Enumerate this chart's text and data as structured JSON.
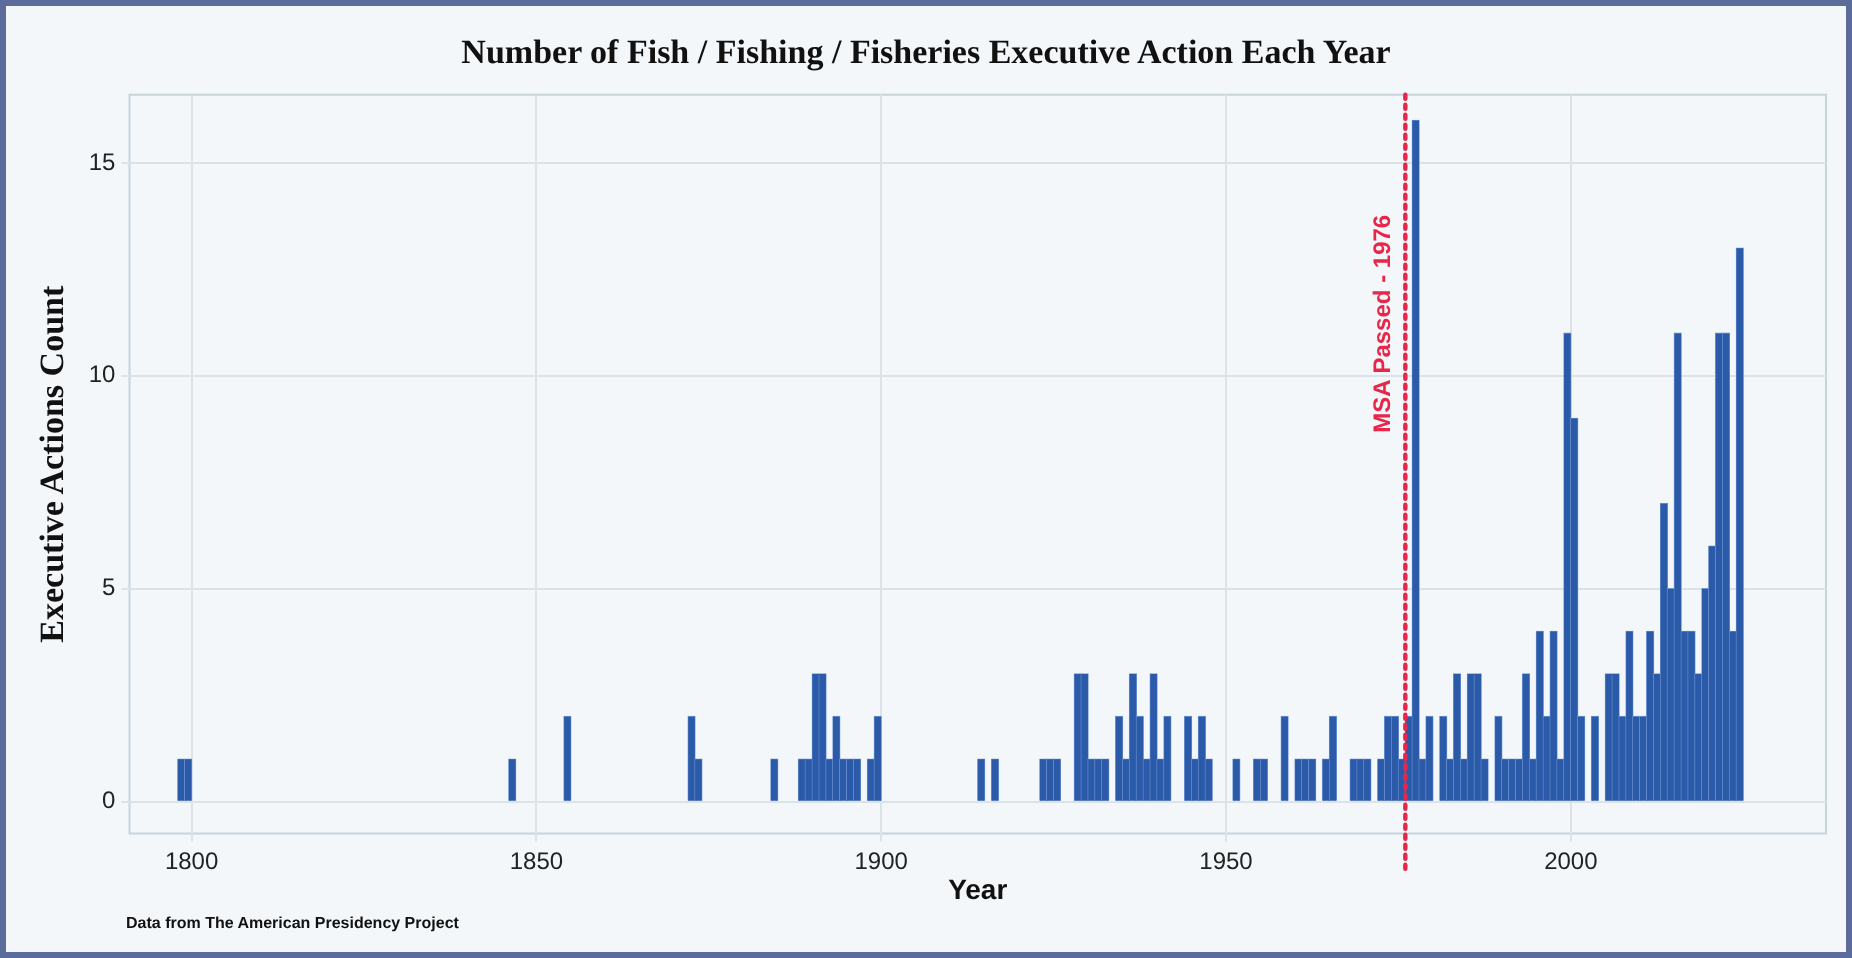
{
  "chart_data": {
    "type": "histogram",
    "title": "Number of Fish / Fishing / Fisheries Executive Action Each Year",
    "xlabel": "Year",
    "ylabel": "Executive Actions Count",
    "color": "#2b5aa8",
    "bins": [
      1798,
      1799,
      1800,
      1801,
      1802,
      1803,
      1804,
      1805,
      1806,
      1807,
      1808,
      1809,
      1810,
      1811,
      1812,
      1813,
      1814,
      1815,
      1816,
      1817,
      1818,
      1819,
      1820,
      1821,
      1822,
      1823,
      1824,
      1825,
      1826,
      1827,
      1828,
      1829,
      1830,
      1831,
      1832,
      1833,
      1834,
      1835,
      1836,
      1837,
      1838,
      1839,
      1840,
      1841,
      1842,
      1843,
      1844,
      1845,
      1846,
      1847,
      1848,
      1849,
      1850,
      1851,
      1852,
      1853,
      1854,
      1855,
      1856,
      1857,
      1858,
      1859,
      1860,
      1861,
      1862,
      1863,
      1864,
      1865,
      1866,
      1867,
      1868,
      1869,
      1870,
      1871,
      1872,
      1873,
      1874,
      1875,
      1876,
      1877,
      1878,
      1879,
      1880,
      1881,
      1882,
      1883,
      1884,
      1885,
      1886,
      1887,
      1888,
      1889,
      1890,
      1891,
      1892,
      1893,
      1894,
      1895,
      1896,
      1897,
      1898,
      1899,
      1900,
      1901,
      1902,
      1903,
      1904,
      1905,
      1906,
      1907,
      1908,
      1909,
      1910,
      1911,
      1912,
      1913,
      1914,
      1915,
      1916,
      1917,
      1918,
      1919,
      1920,
      1921,
      1922,
      1923,
      1924,
      1925,
      1926,
      1927,
      1928,
      1929,
      1930,
      1931,
      1932,
      1933,
      1934,
      1935,
      1936,
      1937,
      1938,
      1939,
      1940,
      1941,
      1942,
      1943,
      1944,
      1945,
      1946,
      1947,
      1948,
      1949,
      1950,
      1951,
      1952,
      1953,
      1954,
      1955,
      1956,
      1957,
      1958,
      1959,
      1960,
      1961,
      1962,
      1963,
      1964,
      1965,
      1966,
      1967,
      1968,
      1969,
      1970,
      1971,
      1972,
      1973,
      1974,
      1975,
      1976,
      1977,
      1978,
      1979,
      1980,
      1981,
      1982,
      1983,
      1984,
      1985,
      1986,
      1987,
      1988,
      1989,
      1990,
      1991,
      1992,
      1993,
      1994,
      1995,
      1996,
      1997,
      1998,
      1999,
      2000,
      2001,
      2002,
      2003,
      2004,
      2005,
      2006,
      2007,
      2008,
      2009,
      2010,
      2011,
      2012,
      2013,
      2014,
      2015,
      2016,
      2017,
      2018,
      2019,
      2020,
      2021,
      2022,
      2023,
      2024,
      2025
    ],
    "values": [
      1,
      1,
      0,
      0,
      0,
      0,
      0,
      0,
      0,
      0,
      0,
      0,
      0,
      0,
      0,
      0,
      0,
      0,
      0,
      0,
      0,
      0,
      0,
      0,
      0,
      0,
      0,
      0,
      0,
      0,
      0,
      0,
      0,
      0,
      0,
      0,
      0,
      0,
      0,
      0,
      0,
      0,
      0,
      0,
      0,
      0,
      0,
      0,
      1,
      0,
      0,
      0,
      0,
      0,
      0,
      0,
      2,
      0,
      0,
      0,
      0,
      0,
      0,
      0,
      0,
      0,
      0,
      0,
      0,
      0,
      0,
      0,
      0,
      0,
      2,
      1,
      0,
      0,
      0,
      0,
      0,
      0,
      0,
      0,
      0,
      0,
      1,
      0,
      0,
      0,
      1,
      1,
      3,
      3,
      1,
      2,
      1,
      1,
      1,
      0,
      1,
      2,
      0,
      0,
      0,
      0,
      0,
      0,
      0,
      0,
      0,
      0,
      0,
      0,
      0,
      0,
      1,
      0,
      1,
      0,
      0,
      0,
      0,
      0,
      0,
      1,
      1,
      1,
      0,
      0,
      3,
      3,
      1,
      1,
      1,
      0,
      2,
      1,
      3,
      2,
      1,
      3,
      1,
      2,
      0,
      0,
      2,
      1,
      2,
      1,
      0,
      0,
      0,
      1,
      0,
      0,
      1,
      1,
      0,
      0,
      2,
      0,
      1,
      1,
      1,
      0,
      1,
      2,
      0,
      0,
      1,
      1,
      1,
      0,
      1,
      2,
      2,
      1,
      2,
      16,
      1,
      2,
      0,
      2,
      1,
      3,
      1,
      3,
      3,
      1,
      0,
      2,
      1,
      1,
      1,
      3,
      1,
      4,
      2,
      4,
      1,
      11,
      9,
      2,
      0,
      2,
      0,
      3,
      3,
      2,
      4,
      2,
      2,
      4,
      3,
      7,
      5,
      11,
      4,
      4,
      3,
      5,
      6,
      11,
      11,
      4,
      13
    ],
    "xlim": [
      1791,
      2037
    ],
    "xticks": [
      1800,
      1850,
      1900,
      1950,
      2000
    ],
    "ylim": [
      -0.75,
      16.6
    ],
    "yticks": [
      0,
      5,
      10,
      15
    ],
    "grid": true,
    "ref_lines": [
      {
        "axis": "x",
        "value": 1976,
        "label": "MSA Passed - 1976",
        "color": "#e8264a",
        "line_style": "dotted"
      }
    ],
    "annotations": [
      "Data from The American Presidency Project"
    ]
  }
}
